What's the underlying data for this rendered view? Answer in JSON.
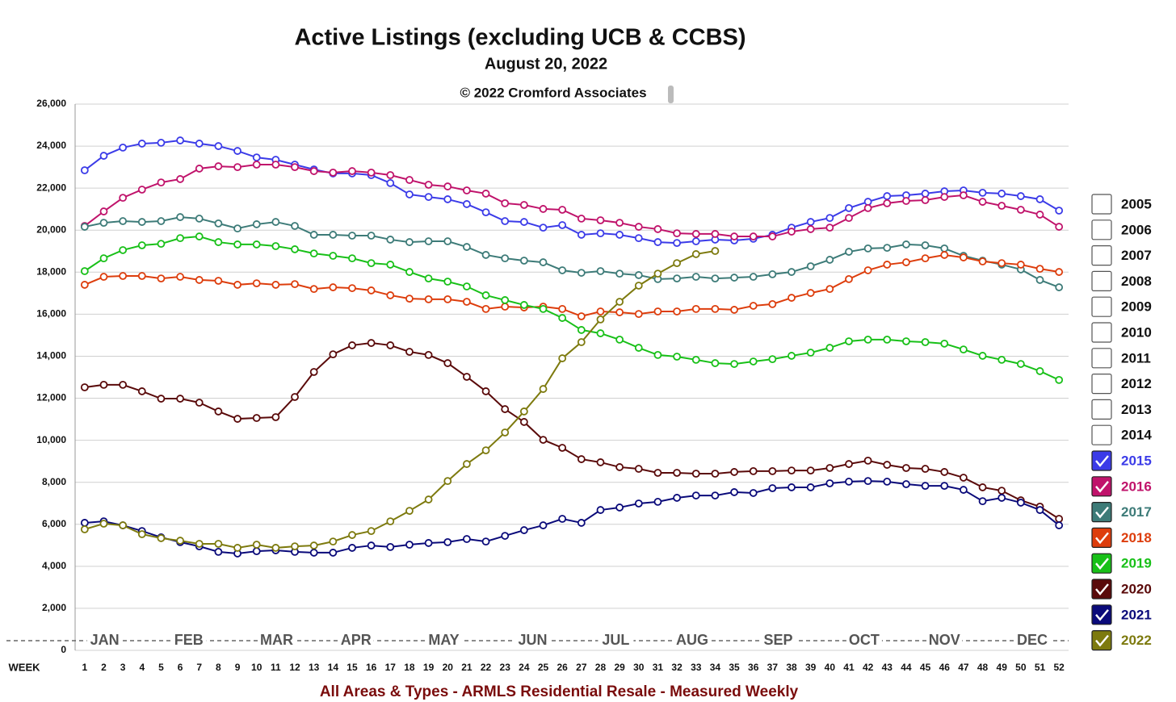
{
  "chart_data": {
    "type": "line",
    "title": "Active Listings (excluding UCB & CCBS)",
    "subtitle": "August 20, 2022",
    "copyright": "© 2022 Cromford Associates",
    "xlabel": "WEEK",
    "footer": "All Areas & Types - ARMLS Residential Resale - Measured Weekly",
    "x": [
      1,
      2,
      3,
      4,
      5,
      6,
      7,
      8,
      9,
      10,
      11,
      12,
      13,
      14,
      15,
      16,
      17,
      18,
      19,
      20,
      21,
      22,
      23,
      24,
      25,
      26,
      27,
      28,
      29,
      30,
      31,
      32,
      33,
      34,
      35,
      36,
      37,
      38,
      39,
      40,
      41,
      42,
      43,
      44,
      45,
      46,
      47,
      48,
      49,
      50,
      51,
      52
    ],
    "xlim": [
      0.5,
      52.5
    ],
    "ylim": [
      0,
      26000
    ],
    "yticks": [
      0,
      {
        "value": 2000,
        "label": "2,000"
      },
      {
        "value": 4000,
        "label": "4,000"
      },
      {
        "value": 6000,
        "label": "6,000"
      },
      {
        "value": 8000,
        "label": "8,000"
      },
      {
        "value": 10000,
        "label": "10,000"
      },
      {
        "value": 12000,
        "label": "12,000"
      },
      {
        "value": 14000,
        "label": "14,000"
      },
      {
        "value": 16000,
        "label": "16,000"
      },
      {
        "value": 18000,
        "label": "18,000"
      },
      {
        "value": 20000,
        "label": "20,000"
      },
      {
        "value": 22000,
        "label": "22,000"
      },
      {
        "value": 24000,
        "label": "24,000"
      },
      {
        "value": 26000,
        "label": "26,000"
      }
    ],
    "grid": true,
    "month_labels": [
      {
        "label": "JAN",
        "x": 2.05
      },
      {
        "label": "FEB",
        "x": 6.45
      },
      {
        "label": "MAR",
        "x": 11.05
      },
      {
        "label": "APR",
        "x": 15.2
      },
      {
        "label": "MAY",
        "x": 19.8
      },
      {
        "label": "JUN",
        "x": 24.45
      },
      {
        "label": "JUL",
        "x": 28.8
      },
      {
        "label": "AUG",
        "x": 32.8
      },
      {
        "label": "SEP",
        "x": 37.3
      },
      {
        "label": "OCT",
        "x": 41.8
      },
      {
        "label": "NOV",
        "x": 46
      },
      {
        "label": "DEC",
        "x": 50.6
      }
    ],
    "legend_unchecked": [
      "2005",
      "2006",
      "2007",
      "2008",
      "2009",
      "2010",
      "2011",
      "2012",
      "2013",
      "2014"
    ],
    "series": [
      {
        "name": "2015",
        "color": "#3b3be8",
        "values": [
          22850,
          23540,
          23930,
          24120,
          24160,
          24270,
          24120,
          24000,
          23770,
          23460,
          23350,
          23120,
          22890,
          22700,
          22700,
          22620,
          22240,
          21700,
          21580,
          21470,
          21240,
          20850,
          20430,
          20390,
          20120,
          20240,
          19780,
          19850,
          19780,
          19620,
          19430,
          19390,
          19470,
          19550,
          19510,
          19590,
          19780,
          20120,
          20390,
          20580,
          21050,
          21350,
          21620,
          21660,
          21740,
          21850,
          21890,
          21780,
          21740,
          21620,
          21470,
          20930
        ]
      },
      {
        "name": "2016",
        "color": "#c0136b",
        "values": [
          20200,
          20890,
          21540,
          21930,
          22270,
          22430,
          22930,
          23040,
          23000,
          23120,
          23120,
          23000,
          22810,
          22740,
          22810,
          22740,
          22620,
          22390,
          22160,
          22080,
          21890,
          21740,
          21280,
          21200,
          21010,
          20970,
          20550,
          20470,
          20350,
          20160,
          20050,
          19850,
          19820,
          19820,
          19700,
          19700,
          19700,
          19930,
          20050,
          20120,
          20580,
          21050,
          21280,
          21390,
          21430,
          21580,
          21660,
          21350,
          21160,
          20970,
          20740,
          20160
        ]
      },
      {
        "name": "2017",
        "color": "#3d7b78",
        "values": [
          20160,
          20350,
          20430,
          20390,
          20430,
          20620,
          20550,
          20320,
          20080,
          20280,
          20390,
          20200,
          19780,
          19780,
          19740,
          19740,
          19550,
          19430,
          19470,
          19470,
          19200,
          18820,
          18660,
          18550,
          18470,
          18090,
          17970,
          18050,
          17930,
          17860,
          17670,
          17700,
          17780,
          17700,
          17740,
          17780,
          17900,
          18010,
          18280,
          18590,
          18970,
          19130,
          19160,
          19320,
          19280,
          19130,
          18780,
          18550,
          18360,
          18130,
          17630,
          17280
        ]
      },
      {
        "name": "2018",
        "color": "#dd3d0c",
        "values": [
          17400,
          17780,
          17820,
          17820,
          17700,
          17780,
          17630,
          17590,
          17400,
          17470,
          17400,
          17430,
          17200,
          17280,
          17240,
          17130,
          16900,
          16740,
          16710,
          16710,
          16590,
          16250,
          16360,
          16320,
          16360,
          16250,
          15900,
          16130,
          16090,
          16010,
          16130,
          16130,
          16250,
          16250,
          16210,
          16400,
          16480,
          16780,
          17010,
          17200,
          17670,
          18090,
          18360,
          18470,
          18660,
          18820,
          18700,
          18510,
          18430,
          18360,
          18160,
          18010
        ]
      },
      {
        "name": "2019",
        "color": "#18c018",
        "values": [
          18050,
          18660,
          19050,
          19280,
          19350,
          19620,
          19700,
          19430,
          19320,
          19320,
          19240,
          19090,
          18890,
          18780,
          18660,
          18430,
          18360,
          18010,
          17700,
          17550,
          17320,
          16900,
          16670,
          16440,
          16250,
          15820,
          15250,
          15090,
          14790,
          14400,
          14060,
          13980,
          13830,
          13670,
          13630,
          13750,
          13860,
          14020,
          14170,
          14400,
          14710,
          14790,
          14790,
          14710,
          14670,
          14600,
          14320,
          14020,
          13830,
          13630,
          13290,
          12870
        ]
      },
      {
        "name": "2020",
        "color": "#5a0a0a",
        "values": [
          12520,
          12640,
          12640,
          12330,
          11980,
          11980,
          11790,
          11370,
          11020,
          11060,
          11100,
          12060,
          13250,
          14090,
          14520,
          14630,
          14520,
          14210,
          14060,
          13670,
          13020,
          12330,
          11480,
          10870,
          10020,
          9640,
          9100,
          8950,
          8720,
          8640,
          8450,
          8450,
          8410,
          8410,
          8490,
          8530,
          8530,
          8560,
          8560,
          8680,
          8870,
          9030,
          8830,
          8680,
          8640,
          8490,
          8220,
          7760,
          7600,
          7140,
          6840,
          6260
        ]
      },
      {
        "name": "2021",
        "color": "#0a0a7a",
        "values": [
          6070,
          6140,
          5950,
          5680,
          5380,
          5150,
          4950,
          4690,
          4610,
          4720,
          4760,
          4690,
          4650,
          4650,
          4880,
          4990,
          4920,
          5030,
          5110,
          5150,
          5300,
          5180,
          5450,
          5720,
          5950,
          6260,
          6070,
          6680,
          6800,
          6990,
          7070,
          7260,
          7370,
          7370,
          7530,
          7490,
          7720,
          7760,
          7760,
          7950,
          8030,
          8060,
          8030,
          7910,
          7830,
          7830,
          7640,
          7100,
          7260,
          7030,
          6680,
          5950
        ]
      },
      {
        "name": "2022",
        "color": "#7d7a0e",
        "values": [
          5760,
          6030,
          5950,
          5530,
          5340,
          5220,
          5070,
          5070,
          4880,
          5030,
          4880,
          4950,
          4990,
          5180,
          5490,
          5680,
          6140,
          6640,
          7180,
          8060,
          8870,
          9520,
          10370,
          11370,
          12440,
          13900,
          14670,
          15750,
          16590,
          17360,
          17930,
          18430,
          18860,
          19010,
          null,
          null,
          null,
          null,
          null,
          null,
          null,
          null,
          null,
          null,
          null,
          null,
          null,
          null,
          null,
          null,
          null,
          null
        ]
      }
    ]
  }
}
